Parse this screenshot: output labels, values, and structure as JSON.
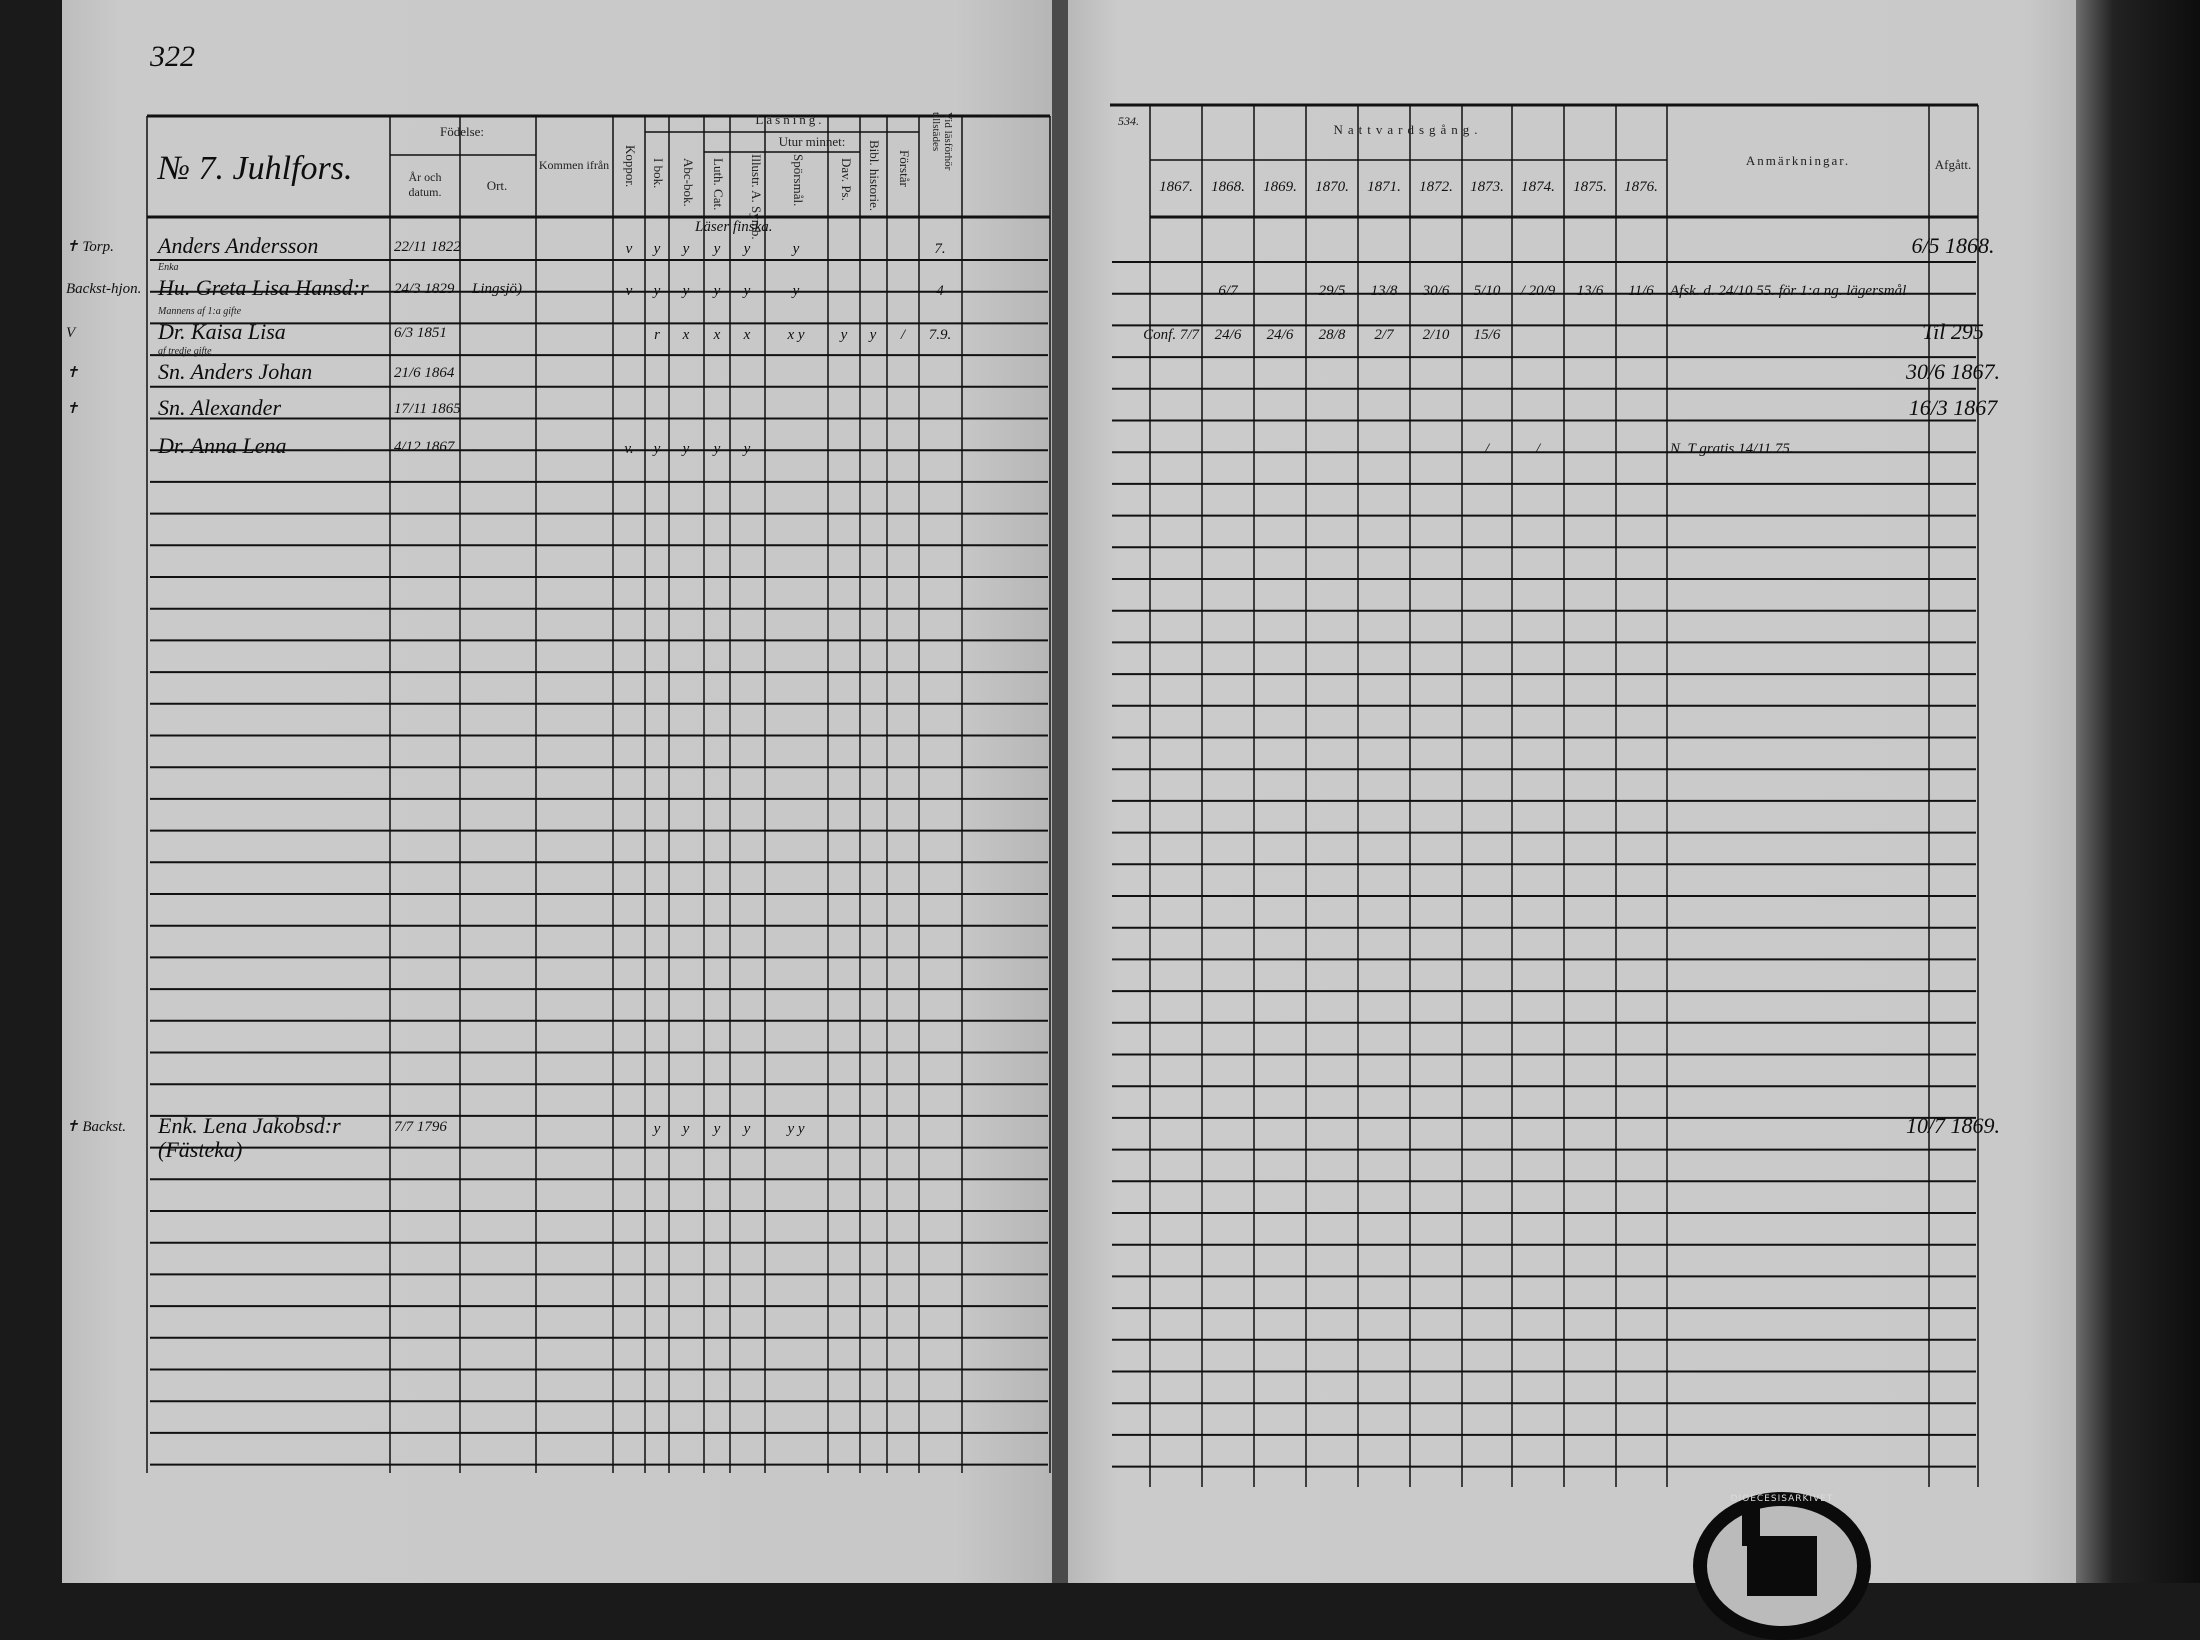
{
  "left_page": {
    "page_number": "322",
    "household_title": "№ 7. Juhlfors.",
    "headers": {
      "birth": "Födelse:",
      "birth_date": "År och datum.",
      "birth_place": "Ort.",
      "came_from": "Kommen ifrån",
      "smallpox": "Koppor.",
      "reading": "Läsning.",
      "by_heart": "Utur minnet:",
      "in_book": "I bok.",
      "abc_book": "Abc-bok.",
      "luth_cat": "Luth. Cat.",
      "illustr": "Illustr. A. Symb.",
      "questions": "Spörsmål.",
      "dav_ps": "Dav. Ps.",
      "bible_history": "Bibl. historie.",
      "understands": "Förstår",
      "present_at_exam": "Vid läsförhör tillstädes"
    },
    "reading_note": "Läser finska.",
    "rows": [
      {
        "margin": "✝ Torp.",
        "note_above": "",
        "name": "Anders Andersson",
        "date": "22/11 1822",
        "place": "",
        "koppor": "v",
        "i_bok": "y",
        "abc": "y",
        "luth": "y",
        "illustr": "y",
        "sporsmal": "y",
        "dav": "",
        "bibl": "",
        "forstar": "",
        "vid": "7."
      },
      {
        "margin": "Backst-hjon.",
        "note_above": "Enka",
        "name": "Hu. Greta Lisa Hansd:r",
        "date": "24/3 1829",
        "place": "Lingsjö)",
        "koppor": "v",
        "i_bok": "y",
        "abc": "y",
        "luth": "y",
        "illustr": "y",
        "sporsmal": "y",
        "dav": "",
        "bibl": "",
        "forstar": "",
        "vid": "4"
      },
      {
        "margin": "V",
        "note_above": "Mannens af 1:a gifte",
        "name": "Dr. Kaisa Lisa",
        "date": "6/3 1851",
        "place": "",
        "koppor": "",
        "i_bok": "r",
        "abc": "x",
        "luth": "x",
        "illustr": "x",
        "sporsmal": "x y",
        "dav": "y",
        "bibl": "y",
        "forstar": "/",
        "vid": "7.9."
      },
      {
        "margin": "✝",
        "note_above": "af tredje gifte",
        "name": "Sn. Anders Johan",
        "date": "21/6 1864",
        "place": "",
        "koppor": "",
        "i_bok": "",
        "abc": "",
        "luth": "",
        "illustr": "",
        "sporsmal": "",
        "dav": "",
        "bibl": "",
        "forstar": "",
        "vid": ""
      },
      {
        "margin": "✝",
        "note_above": "",
        "name": "Sn. Alexander",
        "date": "17/11 1865",
        "place": "",
        "koppor": "",
        "i_bok": "",
        "abc": "",
        "luth": "",
        "illustr": "",
        "sporsmal": "",
        "dav": "",
        "bibl": "",
        "forstar": "",
        "vid": ""
      },
      {
        "margin": "",
        "note_above": "",
        "name": "Dr. Anna Lena",
        "date": "4/12 1867",
        "place": ".",
        "koppor": "v.",
        "i_bok": "y",
        "abc": "y",
        "luth": "y",
        "illustr": "y",
        "sporsmal": "",
        "dav": "",
        "bibl": "",
        "forstar": "",
        "vid": ""
      },
      {
        "margin": "✝ Backst.",
        "note_above": "",
        "name": "Enk. Lena Jakobsd:r (Fästeka)",
        "date": "7/7 1796",
        "place": "",
        "koppor": "",
        "i_bok": "y",
        "abc": "y",
        "luth": "y",
        "illustr": "y",
        "sporsmal": "y y",
        "dav": "",
        "bibl": "",
        "forstar": "",
        "vid": ""
      }
    ]
  },
  "right_page": {
    "page_number": "534.",
    "headers": {
      "communion": "Nattvardsgång.",
      "years": [
        "1867.",
        "1868.",
        "1869.",
        "1870.",
        "1871.",
        "1872.",
        "1873.",
        "1874.",
        "1875.",
        "1876."
      ],
      "remarks": "Anmärkningar.",
      "departed": "Afgått."
    },
    "rows": [
      {
        "communion": [
          "",
          "",
          "",
          "",
          "",
          "",
          "",
          "",
          "",
          ""
        ],
        "remarks": "",
        "departed": "6/5 1868."
      },
      {
        "communion": [
          "",
          "6/7",
          "",
          "29/5",
          "13/8",
          "30/6",
          "5/10",
          "/  20/9",
          "13/6",
          "11/6"
        ],
        "remarks": "Afsk. d. 24/10 55. för 1:a ng. lägersmål",
        "departed": ""
      },
      {
        "communion": [
          "Conf. 7/7",
          "24/6",
          "24/6",
          "28/8",
          "2/7",
          "2/10",
          "15/6",
          "",
          "",
          ""
        ],
        "remarks": "",
        "departed": "Til 295"
      },
      {
        "communion": [
          "",
          "",
          "",
          "",
          "",
          "",
          "",
          "",
          "",
          ""
        ],
        "remarks": "",
        "departed": "30/6 1867."
      },
      {
        "communion": [
          "",
          "",
          "",
          "",
          "",
          "",
          "",
          "",
          "",
          ""
        ],
        "remarks": "",
        "departed": "16/3 1867"
      },
      {
        "communion": [
          "",
          "",
          "",
          "",
          "",
          "",
          "/",
          "/",
          "",
          ""
        ],
        "remarks": "N. T gratis 14/11 75.",
        "departed": ""
      },
      {
        "communion": [
          "",
          "",
          "",
          "",
          "",
          "",
          "",
          "",
          "",
          ""
        ],
        "remarks": "",
        "departed": "10/7 1869."
      }
    ]
  },
  "stamp_text": "DIOECESISARKIVET",
  "colors": {
    "paper": "#c9c9c9",
    "ink": "#111111",
    "background": "#1a1a1a"
  }
}
